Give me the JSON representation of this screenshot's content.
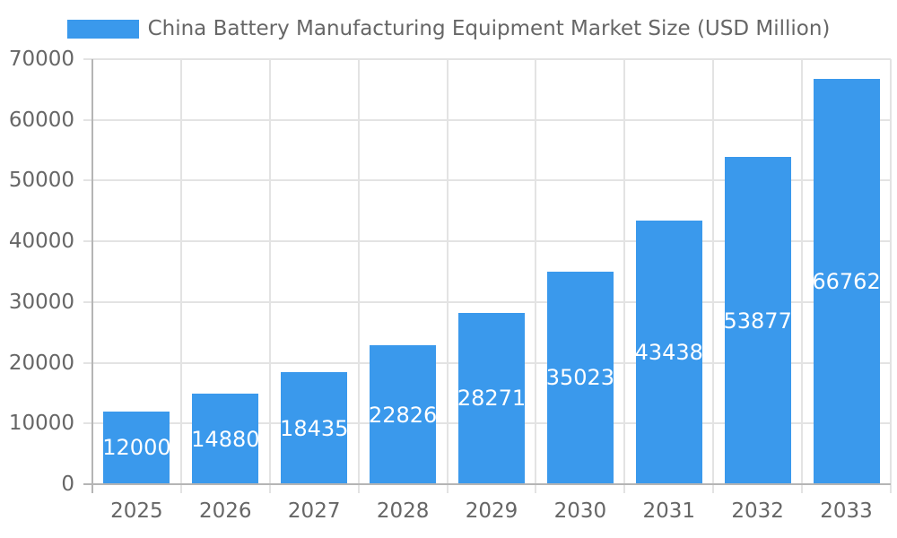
{
  "legend": {
    "label": "China Battery Manufacturing Equipment Market Size (USD Million)",
    "swatch_color": "#3A99EC"
  },
  "chart_data": {
    "type": "bar",
    "title": "China Battery Manufacturing Equipment Market Size (USD Million)",
    "series_name": "China Battery Manufacturing Equipment Market Size (USD Million)",
    "categories": [
      "2025",
      "2026",
      "2027",
      "2028",
      "2029",
      "2030",
      "2031",
      "2032",
      "2033"
    ],
    "values": [
      12000,
      14880,
      18435,
      22826,
      28271,
      35023,
      43438,
      53877,
      66762
    ],
    "data_labels_shown": true,
    "xlabel": "",
    "ylabel": "",
    "ylim": [
      0,
      70000
    ],
    "yticks": [
      0,
      10000,
      20000,
      30000,
      40000,
      50000,
      60000,
      70000
    ],
    "grid": true,
    "legend_position": "top",
    "colors": {
      "bar": "#3A99EC",
      "bar_label": "#FFFFFF",
      "axis_text": "#666666",
      "gridline": "#E3E3E3",
      "axis_line": "#B5B5B5",
      "background": "#FFFFFF"
    }
  }
}
